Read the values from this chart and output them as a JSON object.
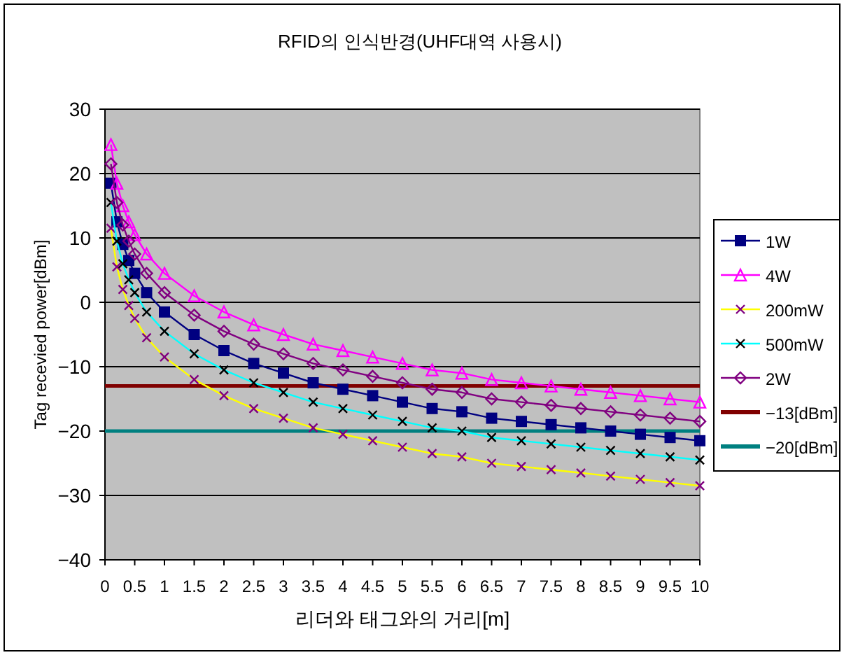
{
  "chart_data": {
    "type": "line",
    "title": "RFID의 인식반경(UHF대역 사용시)",
    "xlabel": "리더와 태그와의 거리[m]",
    "ylabel": "Tag recevied power[dBm]",
    "x": [
      0.1,
      0.2,
      0.3,
      0.4,
      0.5,
      0.7,
      1,
      1.5,
      2,
      2.5,
      3,
      3.5,
      4,
      4.5,
      5,
      5.5,
      6,
      6.5,
      7,
      7.5,
      8,
      8.5,
      9,
      9.5,
      10
    ],
    "xlim": [
      0,
      10
    ],
    "xticks": [
      0,
      0.5,
      1,
      1.5,
      2,
      2.5,
      3,
      3.5,
      4,
      4.5,
      5,
      5.5,
      6,
      6.5,
      7,
      7.5,
      8,
      8.5,
      9,
      9.5,
      10
    ],
    "ylim": [
      -40,
      30
    ],
    "yticks": [
      -40,
      -30,
      -20,
      -10,
      0,
      10,
      20,
      30
    ],
    "grid": "y",
    "legend": "right",
    "series": [
      {
        "name": "1W",
        "color": "#000080",
        "marker": "square",
        "values": [
          18.5,
          12.5,
          9,
          6.5,
          4.5,
          1.5,
          -1.5,
          -5,
          -7.5,
          -9.5,
          -11,
          -12.5,
          -13.5,
          -14.5,
          -15.5,
          -16.5,
          -17,
          -18,
          -18.5,
          -19,
          -19.5,
          -20,
          -20.5,
          -21,
          -21.5
        ]
      },
      {
        "name": "4W",
        "color": "#ff00ff",
        "marker": "triangle",
        "values": [
          24.5,
          18.5,
          15,
          12.5,
          10.5,
          7.5,
          4.5,
          1,
          -1.5,
          -3.5,
          -5,
          -6.5,
          -7.5,
          -8.5,
          -9.5,
          -10.5,
          -11,
          -12,
          -12.5,
          -13,
          -13.5,
          -14,
          -14.5,
          -15,
          -15.5
        ]
      },
      {
        "name": "200mW",
        "color": "#ffff00",
        "marker": "cross",
        "values": [
          11.5,
          5.5,
          2,
          -0.5,
          -2.5,
          -5.5,
          -8.5,
          -12,
          -14.5,
          -16.5,
          -18,
          -19.5,
          -20.5,
          -21.5,
          -22.5,
          -23.5,
          -24,
          -25,
          -25.5,
          -26,
          -26.5,
          -27,
          -27.5,
          -28,
          -28.5
        ]
      },
      {
        "name": "500mW",
        "color": "#00ffff",
        "marker": "cross",
        "values": [
          15.5,
          9.5,
          6,
          3.5,
          1.5,
          -1.5,
          -4.5,
          -8,
          -10.5,
          -12.5,
          -14,
          -15.5,
          -16.5,
          -17.5,
          -18.5,
          -19.5,
          -20,
          -21,
          -21.5,
          -22,
          -22.5,
          -23,
          -23.5,
          -24,
          -24.5
        ]
      },
      {
        "name": "2W",
        "color": "#800080",
        "marker": "diamond",
        "values": [
          21.5,
          15.5,
          12,
          9.5,
          7.5,
          4.5,
          1.5,
          -2,
          -4.5,
          -6.5,
          -8,
          -9.5,
          -10.5,
          -11.5,
          -12.5,
          -13.5,
          -14,
          -15,
          -15.5,
          -16,
          -16.5,
          -17,
          -17.5,
          -18,
          -18.5
        ]
      }
    ],
    "ref_lines": [
      {
        "axis": "y",
        "value": -13,
        "label": "−13[dBm]",
        "color": "#800000"
      },
      {
        "axis": "y",
        "value": -20,
        "label": "−20[dBm]",
        "color": "#008080"
      }
    ]
  }
}
